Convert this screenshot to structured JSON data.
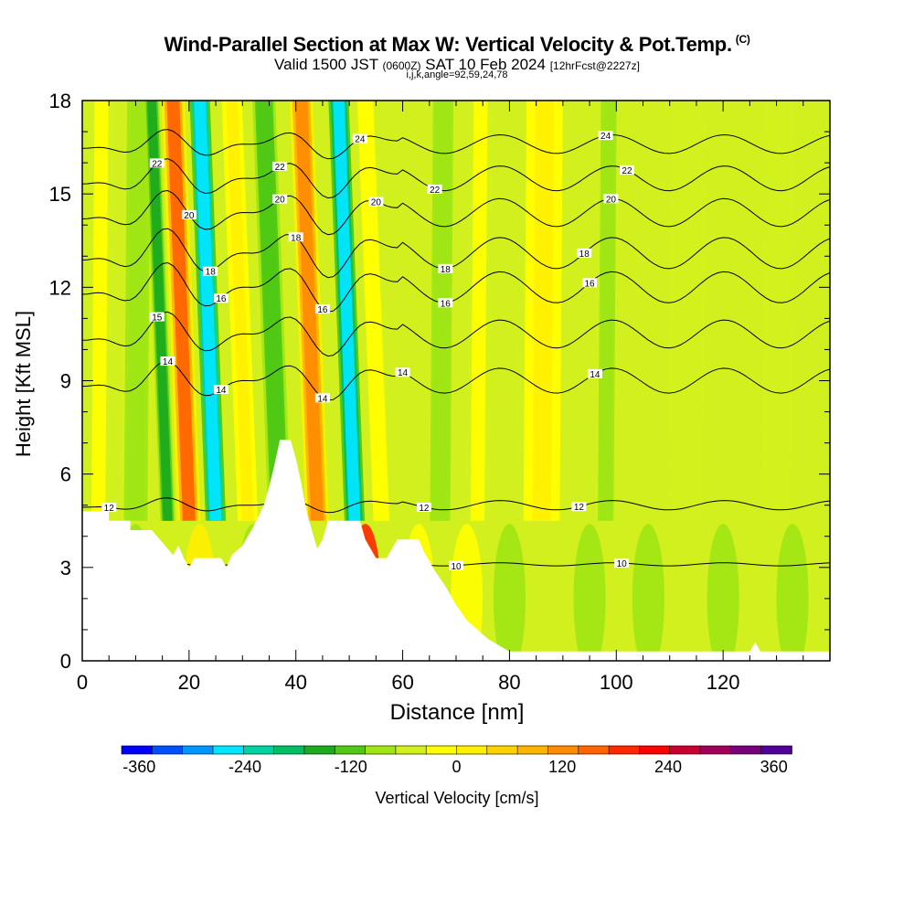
{
  "title": "Wind-Parallel Section at Max W: Vertical Velocity & Pot.Temp.",
  "copyright": "(C)",
  "subtitle_a": "Valid 1500 JST",
  "subtitle_b": "(0600Z)",
  "subtitle_c": "SAT 10 Feb 2024",
  "subtitle_d": "[12hrFcst@2227z]",
  "subtitle2": "i,j,k,angle=92,59,24,78",
  "chart_data": {
    "type": "heatmap",
    "xlabel": "Distance [nm]",
    "ylabel": "Height [Kft MSL]",
    "xlim": [
      0,
      140
    ],
    "ylim": [
      0,
      18
    ],
    "x_ticks": [
      0,
      20,
      40,
      60,
      80,
      100,
      120
    ],
    "y_ticks": [
      0,
      3,
      6,
      9,
      12,
      15,
      18
    ],
    "colorbar": {
      "label": "Vertical Velocity [cm/s]",
      "range": [
        -380,
        380
      ],
      "step": 40,
      "tick_values": [
        -360,
        -240,
        -120,
        0,
        120,
        240,
        360
      ],
      "colors": [
        "#0000ff",
        "#0050ff",
        "#0096ff",
        "#00e6ff",
        "#00d2a0",
        "#00be64",
        "#1eaa1e",
        "#50c814",
        "#a0e614",
        "#d2f01e",
        "#ffff00",
        "#fff000",
        "#ffd200",
        "#ffb400",
        "#ff8c00",
        "#ff6400",
        "#ff2800",
        "#ff0000",
        "#c80032",
        "#a0005a",
        "#780078",
        "#500096"
      ]
    },
    "velocity_bands": [
      {
        "x": 3,
        "w": 4,
        "value": 20
      },
      {
        "x": 10,
        "w": 5,
        "value": -40
      },
      {
        "x": 16,
        "w": 2,
        "value": -120
      },
      {
        "x": 20,
        "w": 3.5,
        "value": 240
      },
      {
        "x": 25,
        "w": 3,
        "value": -260
      },
      {
        "x": 31,
        "w": 3,
        "value": 80
      },
      {
        "x": 37,
        "w": 3.5,
        "value": -100
      },
      {
        "x": 44,
        "w": 3.5,
        "value": 200
      },
      {
        "x": 51,
        "w": 3,
        "value": -250
      },
      {
        "x": 56,
        "w": 3,
        "value": 40
      },
      {
        "x": 67,
        "w": 3,
        "value": -60
      },
      {
        "x": 74,
        "w": 4,
        "value": 20
      },
      {
        "x": 86,
        "w": 6,
        "value": 60
      },
      {
        "x": 98,
        "w": 3,
        "value": -40
      },
      {
        "x": 113,
        "w": 6,
        "value": -20
      },
      {
        "x": 130,
        "w": 5,
        "value": -20
      }
    ],
    "low_level_velocity": [
      {
        "x": 10,
        "value": -40
      },
      {
        "x": 22,
        "value": 60
      },
      {
        "x": 32,
        "value": -60
      },
      {
        "x": 50,
        "value": -40
      },
      {
        "x": 53,
        "value": 260
      },
      {
        "x": 63,
        "value": 20
      },
      {
        "x": 72,
        "value": 20
      },
      {
        "x": 80,
        "value": -40
      },
      {
        "x": 95,
        "value": -40
      },
      {
        "x": 106,
        "value": -40
      },
      {
        "x": 120,
        "value": -40
      },
      {
        "x": 133,
        "value": -40
      }
    ],
    "terrain": [
      [
        0,
        4.8
      ],
      [
        5,
        4.8
      ],
      [
        5,
        4.5
      ],
      [
        9,
        4.5
      ],
      [
        9,
        4.2
      ],
      [
        13,
        4.2
      ],
      [
        14,
        4.0
      ],
      [
        16,
        3.6
      ],
      [
        17,
        3.4
      ],
      [
        18,
        3.7
      ],
      [
        19,
        3.3
      ],
      [
        20,
        3.0
      ],
      [
        21,
        3.3
      ],
      [
        26,
        3.3
      ],
      [
        27,
        3.0
      ],
      [
        28,
        3.4
      ],
      [
        30,
        3.7
      ],
      [
        32,
        4.3
      ],
      [
        34,
        5.0
      ],
      [
        35,
        5.6
      ],
      [
        36,
        6.3
      ],
      [
        37,
        7.1
      ],
      [
        39,
        7.1
      ],
      [
        40,
        6.5
      ],
      [
        41,
        5.7
      ],
      [
        42,
        4.8
      ],
      [
        43,
        4.2
      ],
      [
        44,
        3.6
      ],
      [
        45,
        3.9
      ],
      [
        46,
        4.5
      ],
      [
        52,
        4.5
      ],
      [
        53,
        3.9
      ],
      [
        54,
        3.6
      ],
      [
        55,
        3.3
      ],
      [
        57,
        3.3
      ],
      [
        59,
        3.9
      ],
      [
        63,
        3.9
      ],
      [
        64,
        3.5
      ],
      [
        66,
        2.9
      ],
      [
        68,
        2.4
      ],
      [
        70,
        1.8
      ],
      [
        72,
        1.3
      ],
      [
        74,
        1.0
      ],
      [
        76,
        0.7
      ],
      [
        78,
        0.5
      ],
      [
        80,
        0.3
      ],
      [
        125,
        0.3
      ],
      [
        126,
        0.6
      ],
      [
        127,
        0.3
      ],
      [
        140,
        0.3
      ]
    ],
    "isentropes": [
      {
        "label": "10",
        "base": 3.1,
        "amp": 0.05,
        "label_x": [
          70,
          101
        ]
      },
      {
        "label": "12",
        "base": 5.0,
        "amp": 0.15,
        "label_x": [
          5,
          64,
          93
        ]
      },
      {
        "label": "14",
        "base": 9.0,
        "amp": 0.4,
        "label_x": [
          16,
          26,
          45,
          60,
          96
        ]
      },
      {
        "label": "15",
        "base": 10.5,
        "amp": 0.45,
        "label_x": [
          14
        ]
      },
      {
        "label": "16",
        "base": 12.0,
        "amp": 0.5,
        "label_x": [
          26,
          45,
          68,
          95
        ]
      },
      {
        "label": "18",
        "base": 13.1,
        "amp": 0.5,
        "label_x": [
          24,
          40,
          68,
          94
        ]
      },
      {
        "label": "20",
        "base": 14.4,
        "amp": 0.45,
        "label_x": [
          20,
          37,
          55,
          99
        ]
      },
      {
        "label": "22",
        "base": 15.5,
        "amp": 0.4,
        "label_x": [
          14,
          37,
          66,
          102
        ]
      },
      {
        "label": "24",
        "base": 16.6,
        "amp": 0.3,
        "label_x": [
          52,
          98
        ]
      }
    ]
  }
}
